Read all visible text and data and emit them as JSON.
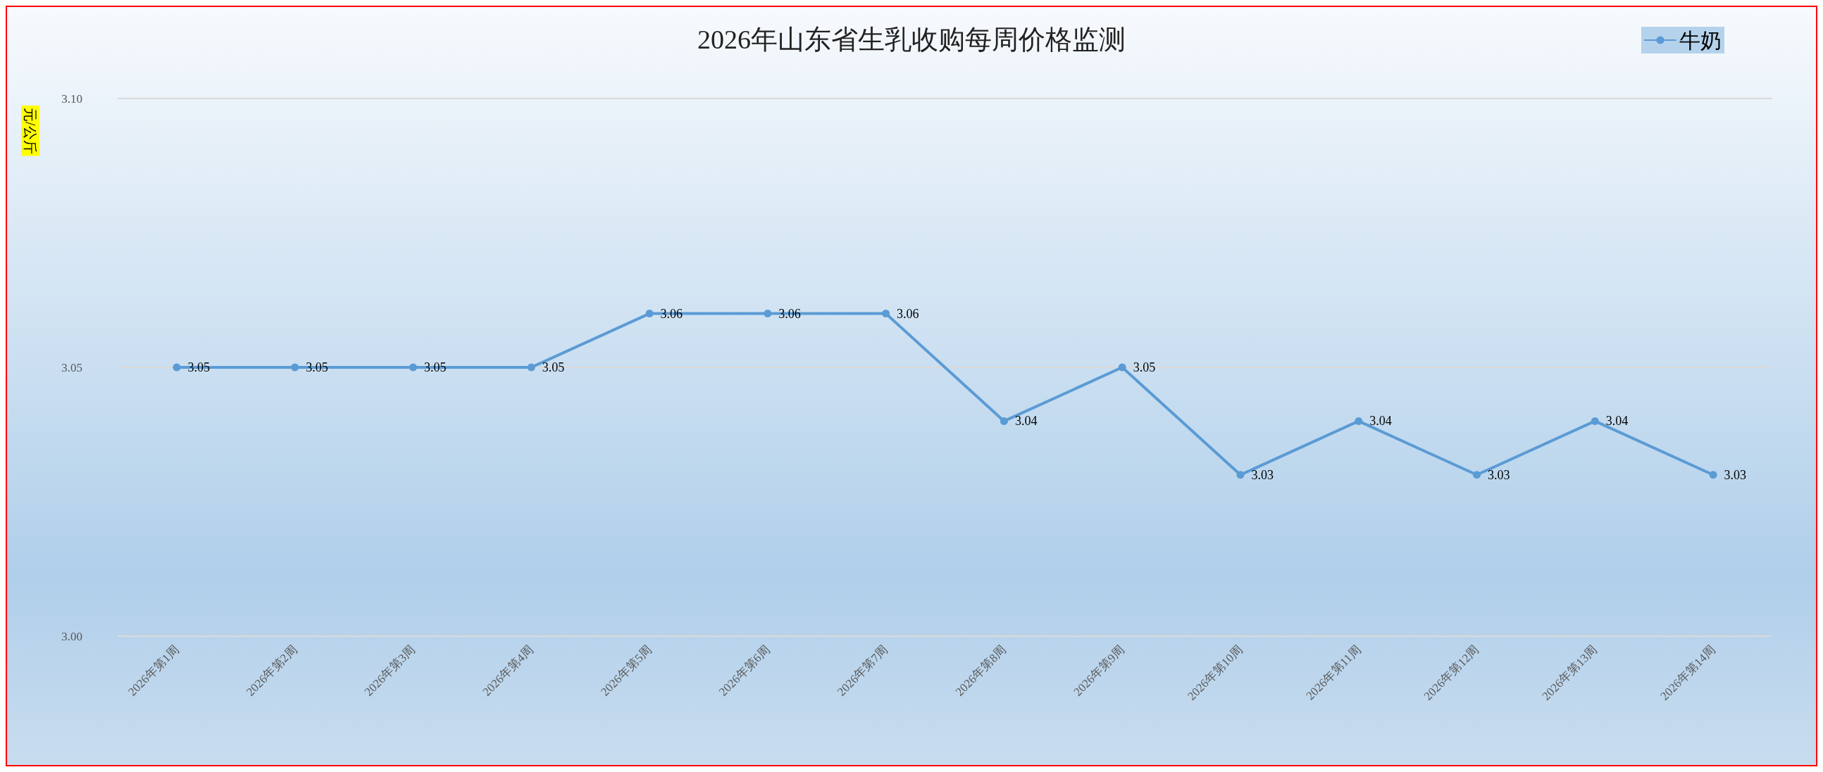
{
  "chart_data": {
    "type": "line",
    "title": "2026年山东省生乳收购每周价格监测",
    "ylabel": "元/公斤",
    "categories": [
      "2026年第1周",
      "2026年第2周",
      "2026年第3周",
      "2026年第4周",
      "2026年第5周",
      "2026年第6周",
      "2026年第7周",
      "2026年第8周",
      "2026年第9周",
      "2026年第10周",
      "2026年第11周",
      "2026年第12周",
      "2026年第13周",
      "2026年第14周"
    ],
    "series": [
      {
        "name": "牛奶",
        "color": "#5b9bd5",
        "values": [
          3.05,
          3.05,
          3.05,
          3.05,
          3.06,
          3.06,
          3.06,
          3.04,
          3.05,
          3.03,
          3.04,
          3.03,
          3.04,
          3.03
        ]
      }
    ],
    "ylim": [
      3.0,
      3.1
    ],
    "yticks": [
      {
        "value": 3.0,
        "label": "3.00"
      },
      {
        "value": 3.05,
        "label": "3.05"
      },
      {
        "value": 3.1,
        "label": "3.10"
      }
    ],
    "grid": "y",
    "legend": "top right",
    "marker": "circle",
    "line_style": "solid",
    "data_labels": true
  }
}
